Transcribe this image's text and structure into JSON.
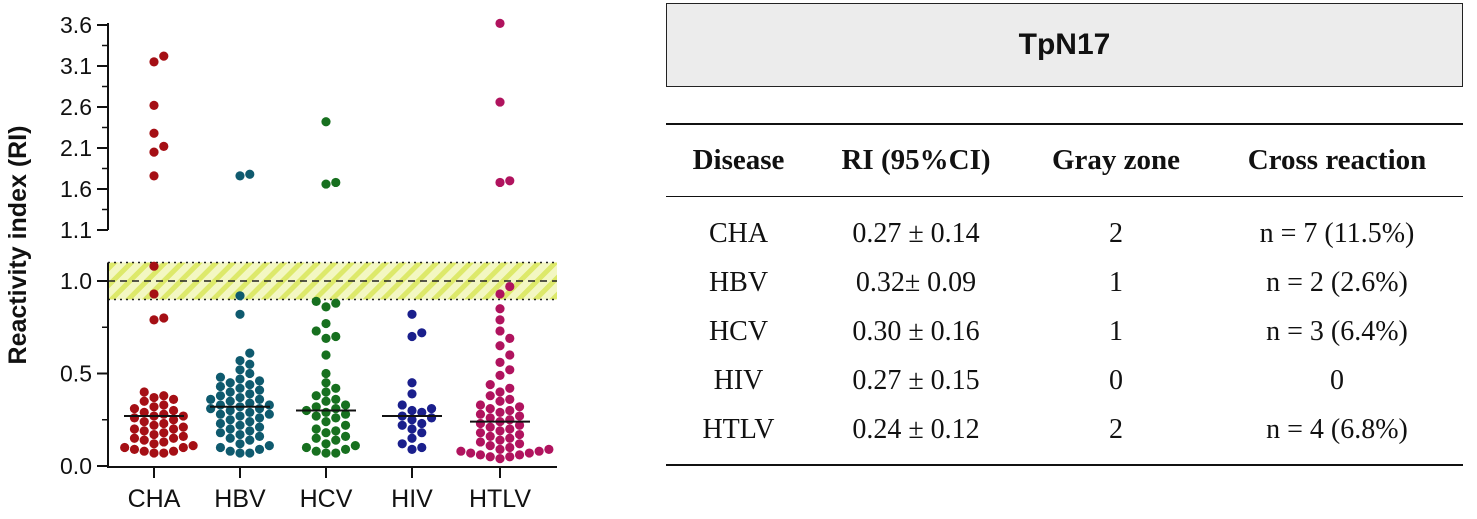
{
  "chart_data": {
    "type": "scatter",
    "ylabel": "Reactivity index (RI)",
    "axis_break": true,
    "upper_ticks": [
      "1.1",
      "1.6",
      "2.1",
      "2.6",
      "3.1",
      "3.6"
    ],
    "lower_ticks": [
      "0.0",
      "0.5",
      "1.0"
    ],
    "upper_ylim": [
      1.1,
      3.65
    ],
    "lower_ylim": [
      0.0,
      1.1
    ],
    "reference_line": 1.0,
    "gray_zone": [
      0.9,
      1.1
    ],
    "categories": [
      "CHA",
      "HBV",
      "HCV",
      "HIV",
      "HTLV"
    ],
    "colors": {
      "CHA": "#a50f15",
      "HBV": "#0f5a6e",
      "HCV": "#17701f",
      "HIV": "#1a1f8c",
      "HTLV": "#b0135e"
    },
    "means": [
      0.27,
      0.32,
      0.3,
      0.27,
      0.24
    ],
    "series": [
      {
        "name": "CHA",
        "values": [
          3.22,
          3.15,
          2.62,
          2.28,
          2.12,
          2.05,
          1.76,
          1.08,
          0.93,
          0.8,
          0.79,
          0.4,
          0.38,
          0.37,
          0.36,
          0.35,
          0.33,
          0.32,
          0.31,
          0.3,
          0.29,
          0.28,
          0.27,
          0.27,
          0.26,
          0.25,
          0.24,
          0.23,
          0.22,
          0.21,
          0.2,
          0.2,
          0.19,
          0.18,
          0.17,
          0.16,
          0.15,
          0.15,
          0.14,
          0.13,
          0.12,
          0.11,
          0.1,
          0.1,
          0.09,
          0.08,
          0.08,
          0.07,
          0.07
        ]
      },
      {
        "name": "HBV",
        "values": [
          1.78,
          1.76,
          0.92,
          0.82,
          0.61,
          0.57,
          0.55,
          0.52,
          0.5,
          0.48,
          0.47,
          0.46,
          0.45,
          0.44,
          0.43,
          0.42,
          0.41,
          0.4,
          0.39,
          0.38,
          0.37,
          0.36,
          0.36,
          0.35,
          0.34,
          0.33,
          0.33,
          0.32,
          0.31,
          0.31,
          0.3,
          0.29,
          0.28,
          0.28,
          0.27,
          0.26,
          0.25,
          0.24,
          0.23,
          0.22,
          0.21,
          0.2,
          0.19,
          0.18,
          0.17,
          0.16,
          0.15,
          0.14,
          0.12,
          0.11,
          0.1,
          0.09,
          0.08,
          0.07,
          0.07
        ]
      },
      {
        "name": "HCV",
        "values": [
          2.42,
          1.68,
          1.66,
          0.89,
          0.88,
          0.86,
          0.77,
          0.73,
          0.7,
          0.69,
          0.6,
          0.5,
          0.45,
          0.42,
          0.4,
          0.38,
          0.36,
          0.35,
          0.33,
          0.32,
          0.31,
          0.3,
          0.29,
          0.28,
          0.27,
          0.26,
          0.24,
          0.22,
          0.2,
          0.19,
          0.18,
          0.16,
          0.15,
          0.14,
          0.12,
          0.11,
          0.1,
          0.09,
          0.08,
          0.07,
          0.07
        ]
      },
      {
        "name": "HIV",
        "values": [
          0.82,
          0.72,
          0.7,
          0.45,
          0.39,
          0.33,
          0.31,
          0.3,
          0.29,
          0.27,
          0.26,
          0.25,
          0.23,
          0.22,
          0.2,
          0.18,
          0.15,
          0.12,
          0.1,
          0.09
        ]
      },
      {
        "name": "HTLV",
        "values": [
          3.62,
          2.66,
          1.7,
          1.68,
          0.97,
          0.93,
          0.85,
          0.79,
          0.73,
          0.69,
          0.65,
          0.6,
          0.56,
          0.52,
          0.49,
          0.44,
          0.42,
          0.4,
          0.38,
          0.36,
          0.35,
          0.33,
          0.32,
          0.31,
          0.3,
          0.29,
          0.28,
          0.27,
          0.26,
          0.25,
          0.24,
          0.23,
          0.22,
          0.21,
          0.2,
          0.19,
          0.18,
          0.17,
          0.16,
          0.15,
          0.14,
          0.13,
          0.12,
          0.11,
          0.1,
          0.09,
          0.09,
          0.08,
          0.08,
          0.07,
          0.07,
          0.06,
          0.06,
          0.05,
          0.05,
          0.04
        ]
      }
    ]
  },
  "table": {
    "title": "TpN17",
    "headers": [
      "Disease",
      "RI (95%CI)",
      "Gray zone",
      "Cross reaction"
    ],
    "rows": [
      [
        "CHA",
        "0.27 ± 0.14",
        "2",
        "n = 7 (11.5%)"
      ],
      [
        "HBV",
        "0.32± 0.09",
        "1",
        "n = 2 (2.6%)"
      ],
      [
        "HCV",
        "0.30 ± 0.16",
        "1",
        "n = 3 (6.4%)"
      ],
      [
        "HIV",
        "0.27 ± 0.15",
        "0",
        "0"
      ],
      [
        "HTLV",
        "0.24 ± 0.12",
        "2",
        "n = 4 (6.8%)"
      ]
    ]
  }
}
